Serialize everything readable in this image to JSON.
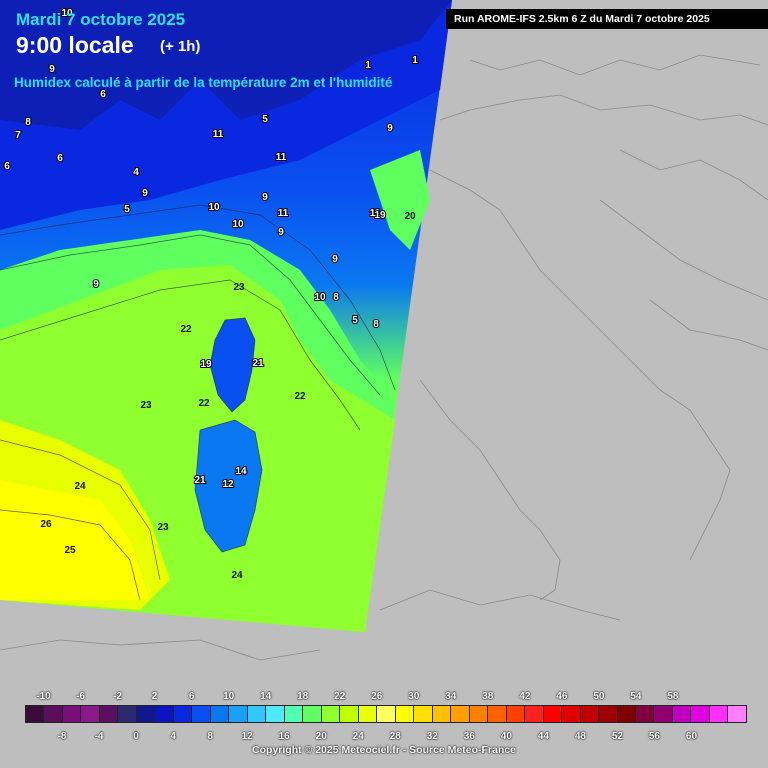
{
  "header": {
    "date": "Mardi 7 octobre 2025",
    "time": "9:00 locale",
    "lead": "(+ 1h)",
    "subtitle": "Humidex calculé à partir de la température 2m et l'humidité",
    "run": "Run AROME-IFS 2.5km 6 Z du Mardi 7 octobre 2025"
  },
  "legend": {
    "top_labels": [
      "-10",
      "-6",
      "-2",
      "2",
      "6",
      "10",
      "14",
      "18",
      "22",
      "26",
      "30",
      "34",
      "38",
      "42",
      "46",
      "50",
      "54",
      "58"
    ],
    "bottom_labels": [
      "-8",
      "-4",
      "0",
      "4",
      "8",
      "12",
      "16",
      "20",
      "24",
      "28",
      "32",
      "36",
      "40",
      "44",
      "48",
      "52",
      "56",
      "60"
    ],
    "colors": [
      "#3a0a3a",
      "#5a0f5a",
      "#780f78",
      "#8a1a8a",
      "#5a1060",
      "#2a2a70",
      "#101890",
      "#0a14c0",
      "#0a28e0",
      "#0a50f0",
      "#0a78f0",
      "#1aa0f8",
      "#30c8ff",
      "#50e8ff",
      "#50ffb0",
      "#60ff60",
      "#90ff30",
      "#c0ff00",
      "#e8ff00",
      "#ffff60",
      "#ffff00",
      "#ffe000",
      "#ffc000",
      "#ffa000",
      "#ff8000",
      "#ff6000",
      "#ff4000",
      "#ff2020",
      "#ff0000",
      "#e00000",
      "#c00000",
      "#a00000",
      "#800000",
      "#800040",
      "#900070",
      "#c000c0",
      "#e000e0",
      "#ff30ff",
      "#ff80ff"
    ]
  },
  "map": {
    "values": [
      {
        "t": "10",
        "k": "w"
      },
      {
        "t": "9",
        "k": "w"
      },
      {
        "t": "6",
        "k": "w"
      },
      {
        "t": "8",
        "k": "w"
      },
      {
        "t": "7",
        "k": "w"
      },
      {
        "t": "6",
        "k": "w"
      },
      {
        "t": "6",
        "k": "w"
      },
      {
        "t": "4",
        "k": "w"
      },
      {
        "t": "9",
        "k": "w"
      },
      {
        "t": "5",
        "k": "w"
      },
      {
        "t": "11",
        "k": "w"
      },
      {
        "t": "11",
        "k": "w"
      },
      {
        "t": "10",
        "k": "w"
      },
      {
        "t": "10",
        "k": "w"
      },
      {
        "t": "9",
        "k": "w"
      },
      {
        "t": "11",
        "k": "w"
      },
      {
        "t": "9",
        "k": "w"
      },
      {
        "t": "9",
        "k": "w"
      },
      {
        "t": "1",
        "k": "w"
      },
      {
        "t": "1",
        "k": "w"
      },
      {
        "t": "5",
        "k": "w"
      },
      {
        "t": "11",
        "k": "w"
      },
      {
        "t": "19",
        "k": "w"
      },
      {
        "t": "20",
        "k": "d"
      },
      {
        "t": "9",
        "k": "w"
      },
      {
        "t": "10",
        "k": "w"
      },
      {
        "t": "8",
        "k": "w"
      },
      {
        "t": "5",
        "k": "w"
      },
      {
        "t": "8",
        "k": "w"
      },
      {
        "t": "9",
        "k": "w"
      },
      {
        "t": "23",
        "k": "d"
      },
      {
        "t": "22",
        "k": "d"
      },
      {
        "t": "21",
        "k": "w"
      },
      {
        "t": "19",
        "k": "w"
      },
      {
        "t": "23",
        "k": "d"
      },
      {
        "t": "22",
        "k": "d"
      },
      {
        "t": "22",
        "k": "d"
      },
      {
        "t": "24",
        "k": "d"
      },
      {
        "t": "21",
        "k": "w"
      },
      {
        "t": "12",
        "k": "w"
      },
      {
        "t": "14",
        "k": "w"
      },
      {
        "t": "26",
        "k": "d"
      },
      {
        "t": "25",
        "k": "d"
      },
      {
        "t": "23",
        "k": "d"
      },
      {
        "t": "24",
        "k": "d"
      }
    ]
  },
  "footer": {
    "copyright": "Copyright © 2025 Meteociel.fr - Source Meteo-France"
  }
}
